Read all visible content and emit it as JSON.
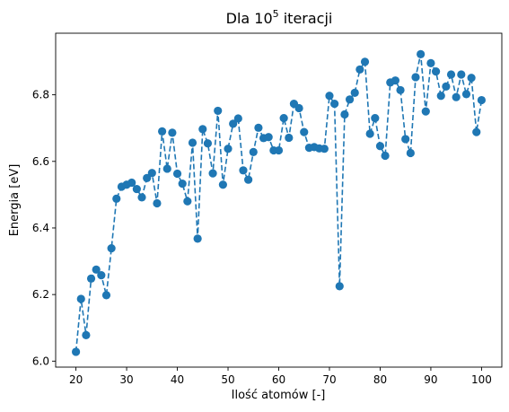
{
  "chart_data": {
    "type": "line",
    "title_base": "Dla 10",
    "title_exp": "5",
    "title_rest": " iteracji",
    "xlabel": "Ilość atomów [-]",
    "ylabel": "Energia [eV]",
    "xlim": [
      16,
      104
    ],
    "ylim": [
      5.982,
      6.985
    ],
    "xticks": [
      20,
      30,
      40,
      50,
      60,
      70,
      80,
      90,
      100
    ],
    "yticks": [
      6.0,
      6.2,
      6.4,
      6.6,
      6.8
    ],
    "xtick_labels": [
      "20",
      "30",
      "40",
      "50",
      "60",
      "70",
      "80",
      "90",
      "100"
    ],
    "ytick_labels": [
      "6.0",
      "6.2",
      "6.4",
      "6.6",
      "6.8"
    ],
    "grid": false,
    "style": {
      "line": "dashed",
      "marker": "circle",
      "color": "#1f77b4"
    },
    "series": [
      {
        "x": [
          20,
          21,
          22,
          23,
          24,
          25,
          26,
          27,
          28,
          29,
          30,
          31,
          32,
          33,
          34,
          35,
          36,
          37,
          38,
          39,
          40,
          41,
          42,
          43,
          44,
          45,
          46,
          47,
          48,
          49,
          50,
          51,
          52,
          53,
          54,
          55,
          56,
          57,
          58,
          59,
          60,
          61,
          62,
          63,
          64,
          65,
          66,
          67,
          68,
          69,
          70,
          71,
          72,
          73,
          74,
          75,
          76,
          77,
          78,
          79,
          80,
          81,
          82,
          83,
          84,
          85,
          86,
          87,
          88,
          89,
          90,
          91,
          92,
          93,
          94,
          95,
          96,
          97,
          98,
          99,
          100
        ],
        "y": [
          6.028,
          6.187,
          6.078,
          6.248,
          6.275,
          6.258,
          6.198,
          6.339,
          6.488,
          6.524,
          6.53,
          6.536,
          6.517,
          6.492,
          6.55,
          6.565,
          6.474,
          6.69,
          6.578,
          6.686,
          6.563,
          6.533,
          6.48,
          6.656,
          6.368,
          6.697,
          6.654,
          6.564,
          6.752,
          6.53,
          6.638,
          6.713,
          6.729,
          6.573,
          6.545,
          6.628,
          6.701,
          6.67,
          6.673,
          6.633,
          6.633,
          6.73,
          6.671,
          6.773,
          6.76,
          6.688,
          6.641,
          6.643,
          6.639,
          6.638,
          6.797,
          6.773,
          6.225,
          6.741,
          6.786,
          6.806,
          6.876,
          6.899,
          6.683,
          6.73,
          6.646,
          6.617,
          6.837,
          6.843,
          6.814,
          6.667,
          6.625,
          6.853,
          6.922,
          6.75,
          6.895,
          6.87,
          6.797,
          6.825,
          6.861,
          6.793,
          6.861,
          6.802,
          6.851,
          6.688,
          6.784
        ]
      }
    ]
  }
}
